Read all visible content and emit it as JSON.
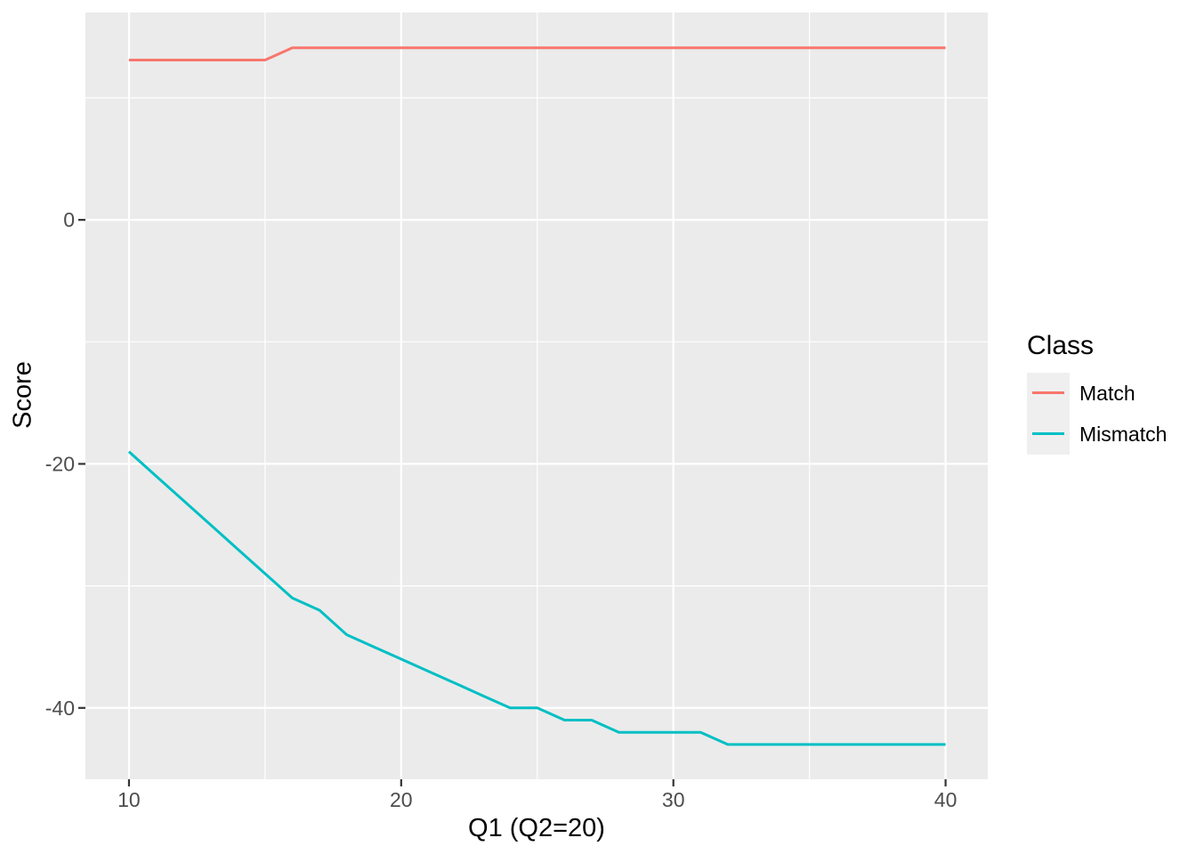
{
  "figure": {
    "background": "#FFFFFF",
    "panel_background": "#EBEBEB",
    "grid_color": "#FFFFFF",
    "tick_color": "#333333",
    "axis_text_color": "#4D4D4D",
    "axis_title_color": "#000000"
  },
  "chart_data": {
    "type": "line",
    "title": "",
    "xlabel": "Q1 (Q2=20)",
    "ylabel": "Score",
    "legend_title": "Class",
    "legend_position": "right",
    "grid": true,
    "xlim": [
      8.4,
      41.55
    ],
    "ylim": [
      -45.85,
      17.0
    ],
    "x_ticks": [
      10,
      20,
      30,
      40
    ],
    "x_tick_labels": [
      "10",
      "20",
      "30",
      "40"
    ],
    "y_ticks": [
      0,
      -20,
      -40
    ],
    "y_tick_labels": [
      "0",
      "-20",
      "-40"
    ],
    "x_minor": [
      15,
      25,
      35
    ],
    "y_minor": [
      10,
      -10,
      -30
    ],
    "x": [
      10,
      11,
      12,
      13,
      14,
      15,
      16,
      17,
      18,
      19,
      20,
      21,
      22,
      23,
      24,
      25,
      26,
      27,
      28,
      29,
      30,
      31,
      32,
      33,
      34,
      35,
      36,
      37,
      38,
      39,
      40
    ],
    "series": [
      {
        "name": "Match",
        "color": "#F8766D",
        "values": [
          13.1,
          13.1,
          13.1,
          13.1,
          13.1,
          13.1,
          14.1,
          14.1,
          14.1,
          14.1,
          14.1,
          14.1,
          14.1,
          14.1,
          14.1,
          14.1,
          14.1,
          14.1,
          14.1,
          14.1,
          14.1,
          14.1,
          14.1,
          14.1,
          14.1,
          14.1,
          14.1,
          14.1,
          14.1,
          14.1,
          14.1
        ]
      },
      {
        "name": "Mismatch",
        "color": "#00BFC4",
        "values": [
          -19,
          -21,
          -23,
          -25,
          -27,
          -29,
          -31,
          -32,
          -34,
          -35,
          -36,
          -37,
          -38,
          -39,
          -40,
          -40,
          -41,
          -41,
          -42,
          -42,
          -42,
          -42,
          -43,
          -43,
          -43,
          -43,
          -43,
          -43,
          -43,
          -43,
          -43
        ]
      }
    ]
  },
  "legend": {
    "title": "Class",
    "items": [
      {
        "label": "Match",
        "color": "#F8766D"
      },
      {
        "label": "Mismatch",
        "color": "#00BFC4"
      }
    ]
  }
}
